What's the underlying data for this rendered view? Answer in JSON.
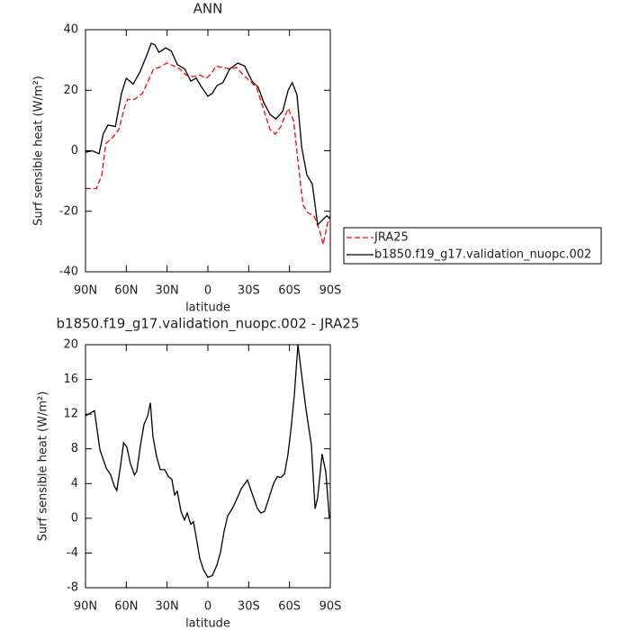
{
  "chart_data": [
    {
      "type": "line",
      "title": "ANN",
      "x_label": "latitude",
      "y_label": "Surf sensible heat (W/m²)",
      "xlim": [
        90,
        -90
      ],
      "xticks": [
        {
          "value": 90,
          "label": "90N"
        },
        {
          "value": 60,
          "label": "60N"
        },
        {
          "value": 30,
          "label": "30N"
        },
        0,
        {
          "value": -30,
          "label": "30S"
        },
        {
          "value": -60,
          "label": "60S"
        },
        {
          "value": -90,
          "label": "90S"
        }
      ],
      "ylim": [
        -40,
        40
      ],
      "yticks": [
        -40,
        -20,
        0,
        20,
        40
      ],
      "legend": "right",
      "series": [
        {
          "name": "JRA25",
          "color": "#ff0000",
          "style": "dashed",
          "x": [
            90,
            82,
            78,
            75,
            70,
            65.5,
            61.5,
            59,
            54,
            48,
            45,
            40,
            36,
            30,
            25,
            20.5,
            16,
            10.5,
            6,
            1,
            -2.6,
            -6,
            -11,
            -16.5,
            -21,
            -26,
            -31,
            -35.7,
            -40,
            -45.7,
            -49.6,
            -53.6,
            -59,
            -63,
            -67,
            -70,
            -73.5,
            -78,
            -82,
            -84.7,
            -88,
            -90
          ],
          "values": [
            -12.5,
            -12.5,
            -8,
            2.4,
            4.5,
            7,
            14,
            17,
            17,
            19,
            22,
            27,
            27.5,
            29,
            28,
            27,
            25,
            24.5,
            25,
            24,
            25.5,
            28,
            27.5,
            27,
            27.5,
            25,
            23,
            21,
            15,
            7,
            5.5,
            8,
            14,
            10,
            -6.5,
            -18,
            -20.5,
            -21.5,
            -26,
            -31,
            -24,
            -21.5
          ]
        },
        {
          "name": "b1850.f19_g17.validation_nuopc.002",
          "color": "#000000",
          "style": "solid",
          "x": [
            90,
            85,
            80,
            77,
            73.5,
            68,
            63.5,
            60,
            55,
            50,
            45,
            41.7,
            39,
            36,
            31,
            27,
            22.5,
            17,
            12.6,
            8.6,
            4.6,
            0,
            -3.3,
            -6.6,
            -11,
            -16,
            -22,
            -27,
            -32.4,
            -37,
            -41,
            -45.7,
            -50,
            -55,
            -59,
            -62,
            -65.5,
            -69,
            -72.8,
            -76.8,
            -80.7,
            -84,
            -87.4,
            -90
          ],
          "values": [
            -0.5,
            0,
            -1,
            5.5,
            8.5,
            8,
            19,
            24,
            22,
            26,
            31.5,
            35.5,
            35,
            32.5,
            34,
            33,
            28.5,
            27,
            23,
            24,
            21,
            18,
            19,
            21.5,
            22.5,
            27,
            29,
            28,
            23,
            21,
            16,
            12,
            10.5,
            13,
            20,
            22.5,
            18.5,
            1,
            -8,
            -11,
            -24.5,
            -23,
            -21.5,
            -22.5
          ]
        }
      ]
    },
    {
      "type": "line",
      "title": "b1850.f19_g17.validation_nuopc.002 - JRA25",
      "x_label": "latitude",
      "y_label": "Surf sensible heat (W/m²)",
      "xlim": [
        90,
        -90
      ],
      "xticks": [
        {
          "value": 90,
          "label": "90N"
        },
        {
          "value": 60,
          "label": "60N"
        },
        {
          "value": 30,
          "label": "30N"
        },
        0,
        {
          "value": -30,
          "label": "30S"
        },
        {
          "value": -60,
          "label": "60S"
        },
        {
          "value": -90,
          "label": "90S"
        }
      ],
      "ylim": [
        -8,
        20
      ],
      "yticks": [
        -8,
        -4,
        0,
        4,
        8,
        12,
        16,
        20
      ],
      "series": [
        {
          "color": "#000000",
          "style": "solid",
          "x": [
            90,
            83.4,
            79.4,
            74.8,
            71.5,
            68.8,
            67,
            64,
            62,
            59.6,
            57,
            54,
            52.3,
            49.6,
            47,
            44.3,
            42.3,
            40.4,
            37.7,
            35,
            31.8,
            29,
            26.5,
            24.5,
            22.5,
            19.8,
            17.2,
            15.2,
            12.6,
            10.6,
            8.6,
            6,
            3.3,
            0,
            -3.3,
            -6.6,
            -9.3,
            -11.9,
            -14.6,
            -17.9,
            -21.2,
            -24.5,
            -29.1,
            -32.4,
            -36.4,
            -39,
            -41.7,
            -45,
            -48.3,
            -51,
            -53.6,
            -56.3,
            -58.9,
            -60.9,
            -63.5,
            -66.2,
            -68.8,
            -72.1,
            -76.1,
            -78.8,
            -80.7,
            -84,
            -86.7,
            -89.3
          ],
          "values": [
            11.8,
            12.4,
            7.9,
            5.8,
            5,
            3.7,
            3.2,
            6.3,
            8.7,
            8.2,
            6.3,
            5,
            5.4,
            8.4,
            10.8,
            11.8,
            13.3,
            9.4,
            7.1,
            5.6,
            5.6,
            4.8,
            4.5,
            2.7,
            3.1,
            0.8,
            -0.2,
            0.6,
            -0.7,
            -0.4,
            -2.2,
            -4.6,
            -5.9,
            -6.8,
            -6.6,
            -5.4,
            -3.9,
            -1.5,
            0.3,
            1.1,
            2.2,
            3.4,
            4.4,
            2.9,
            1.1,
            0.6,
            0.8,
            2.4,
            4,
            4.8,
            4.7,
            5.1,
            7.4,
            10,
            14.1,
            20,
            16.7,
            12.6,
            8.4,
            1.1,
            2.4,
            7.4,
            5.3,
            0
          ]
        }
      ]
    }
  ]
}
